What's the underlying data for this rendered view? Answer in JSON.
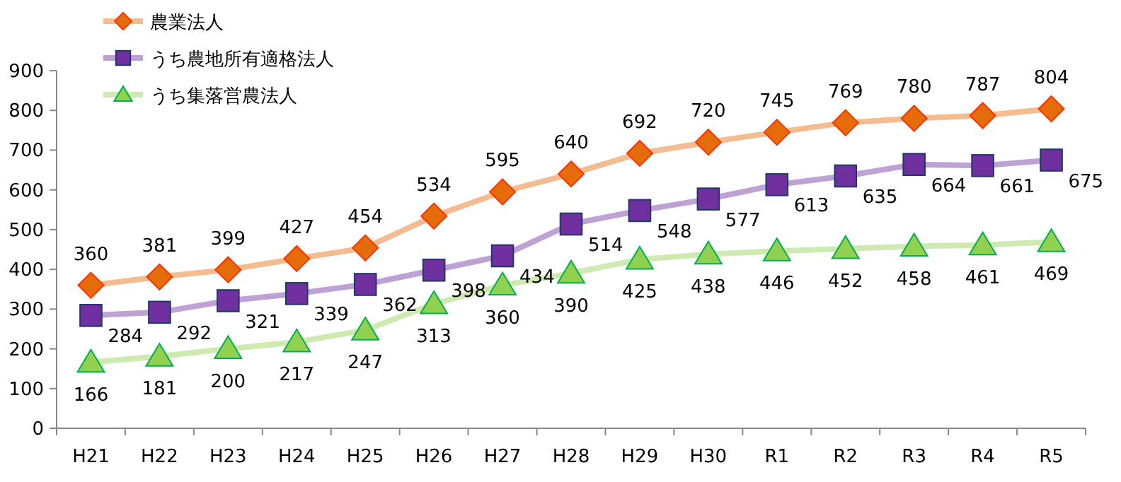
{
  "chart_data": {
    "type": "line",
    "categories": [
      "H21",
      "H22",
      "H23",
      "H24",
      "H25",
      "H26",
      "H27",
      "H28",
      "H29",
      "H30",
      "R1",
      "R2",
      "R3",
      "R4",
      "R5"
    ],
    "series": [
      {
        "name": "農業法人",
        "color": "#e46c0a",
        "marker": "diamond",
        "values": [
          360,
          381,
          399,
          427,
          454,
          534,
          595,
          640,
          692,
          720,
          745,
          769,
          780,
          787,
          804
        ]
      },
      {
        "name": "うち農地所有適格法人",
        "color": "#7030a0",
        "marker": "square",
        "values": [
          284,
          292,
          321,
          339,
          362,
          398,
          434,
          514,
          548,
          577,
          613,
          635,
          664,
          661,
          675
        ]
      },
      {
        "name": "うち集落営農法人",
        "color": "#92d050",
        "marker": "triangle",
        "values": [
          166,
          181,
          200,
          217,
          247,
          313,
          360,
          390,
          425,
          438,
          446,
          452,
          458,
          461,
          469
        ]
      }
    ],
    "ylim": [
      0,
      900
    ],
    "yticks": [
      0,
      100,
      200,
      300,
      400,
      500,
      600,
      700,
      800,
      900
    ],
    "grid": false,
    "legend": "top left",
    "data_labels": true
  }
}
